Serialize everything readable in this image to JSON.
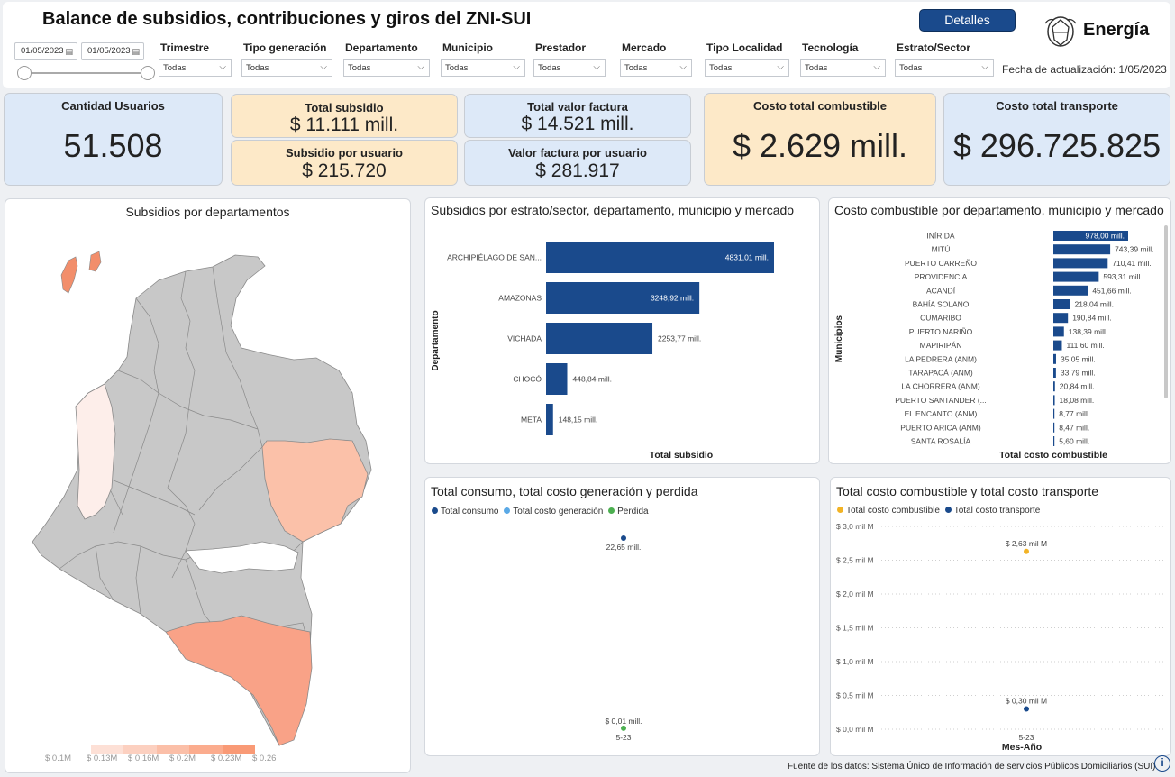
{
  "header": {
    "title": "Balance de subsidios, contribuciones y giros del ZNI-SUI",
    "details_button": "Detalles",
    "logo_text": "Energía",
    "update_text": "Fecha de actualización: 1/05/2023",
    "date_from": "01/05/2023",
    "date_to": "01/05/2023",
    "filters": [
      {
        "label": "Trimestre",
        "value": "Todas"
      },
      {
        "label": "Tipo generación",
        "value": "Todas"
      },
      {
        "label": "Departamento",
        "value": "Todas"
      },
      {
        "label": "Municipio",
        "value": "Todas"
      },
      {
        "label": "Prestador",
        "value": "Todas"
      },
      {
        "label": "Mercado",
        "value": "Todas"
      },
      {
        "label": "Tipo Localidad",
        "value": "Todas"
      },
      {
        "label": "Tecnología",
        "value": "Todas"
      },
      {
        "label": "Estrato/Sector",
        "value": "Todas"
      }
    ]
  },
  "kpis": {
    "usuarios": {
      "label": "Cantidad Usuarios",
      "value": "51.508"
    },
    "total_subsidio": {
      "label": "Total subsidio",
      "value": "$ 11.111 mill."
    },
    "subsidio_usuario": {
      "label": "Subsidio por usuario",
      "value": "$ 215.720"
    },
    "total_factura": {
      "label": "Total valor factura",
      "value": "$ 14.521 mill."
    },
    "factura_usuario": {
      "label": "Valor factura por usuario",
      "value": "$ 281.917"
    },
    "costo_combustible": {
      "label": "Costo total combustible",
      "value": "$ 2.629 mill."
    },
    "costo_transporte": {
      "label": "Costo total transporte",
      "value": "$ 296.725.825"
    }
  },
  "map": {
    "title": "Subsidios por departamentos",
    "legend": [
      "$ 0.1M",
      "$ 0.13M",
      "$ 0.16M",
      "$ 0.2M",
      "$ 0.23M",
      "$ 0.26"
    ],
    "legend_colors": [
      "#fde0d6",
      "#fcd0c0",
      "#fbbfa8",
      "#fbac8e",
      "#f99a76"
    ]
  },
  "chart_data": [
    {
      "type": "bar",
      "orientation": "horizontal",
      "title": "Subsidios por estrato/sector, departamento, municipio y mercado",
      "ylabel": "Departamento",
      "xlabel": "Total subsidio",
      "color": "#1a4a8c",
      "categories": [
        "ARCHIPIÉLAGO DE SAN...",
        "AMAZONAS",
        "VICHADA",
        "CHOCÓ",
        "META"
      ],
      "values": [
        4831.01,
        3248.92,
        2253.77,
        448.84,
        148.15
      ],
      "labels": [
        "4831,01 mill.",
        "3248,92 mill.",
        "2253,77 mill.",
        "448,84 mill.",
        "148,15 mill."
      ]
    },
    {
      "type": "bar",
      "orientation": "horizontal",
      "title": "Costo combustible por departamento, municipio y mercado",
      "ylabel": "Municipios",
      "xlabel": "Total costo combustible",
      "color": "#1a4a8c",
      "categories": [
        "INÍRIDA",
        "MITÚ",
        "PUERTO CARREÑO",
        "PROVIDENCIA",
        "ACANDÍ",
        "BAHÍA SOLANO",
        "CUMARIBO",
        "PUERTO NARIÑO",
        "MAPIRIPÁN",
        "LA PEDRERA (ANM)",
        "TARAPACÁ (ANM)",
        "LA CHORRERA (ANM)",
        "PUERTO SANTANDER (...",
        "EL ENCANTO (ANM)",
        "PUERTO ARICA (ANM)",
        "SANTA ROSALÍA"
      ],
      "values": [
        978.0,
        743.39,
        710.41,
        593.31,
        451.66,
        218.04,
        190.84,
        138.39,
        111.6,
        35.05,
        33.79,
        20.84,
        18.08,
        8.77,
        8.47,
        5.6
      ],
      "labels": [
        "978,00 mill.",
        "743,39 mill.",
        "710,41 mill.",
        "593,31 mill.",
        "451,66 mill.",
        "218,04 mill.",
        "190,84 mill.",
        "138,39 mill.",
        "111,60 mill.",
        "35,05 mill.",
        "33,79 mill.",
        "20,84 mill.",
        "18,08 mill.",
        "8,77 mill.",
        "8,47 mill.",
        "5,60 mill."
      ]
    },
    {
      "type": "scatter",
      "title": "Total consumo, total costo generación y perdida",
      "categories": [
        "5-23"
      ],
      "series": [
        {
          "name": "Total consumo",
          "color": "#1a4a8c",
          "values": [
            22.65
          ],
          "label": "22,65 mill."
        },
        {
          "name": "Total costo generación",
          "color": "#5aa9e6",
          "values": [
            null
          ]
        },
        {
          "name": "Perdida",
          "color": "#4caf50",
          "values": [
            0.01
          ],
          "label": "$ 0,01 mill."
        }
      ]
    },
    {
      "type": "scatter",
      "title": "Total costo combustible y total costo transporte",
      "xlabel": "Mes-Año",
      "categories": [
        "5-23"
      ],
      "yticks": [
        "$ 3,0 mil M",
        "$ 2,5 mil M",
        "$ 2,0 mil M",
        "$ 1,5 mil M",
        "$ 1,0 mil M",
        "$ 0,5 mil M",
        "$ 0,0 mil M"
      ],
      "ylim": [
        0,
        3.0
      ],
      "series": [
        {
          "name": "Total costo combustible",
          "color": "#f2b325",
          "values": [
            2.63
          ],
          "label": "$ 2,63 mil M"
        },
        {
          "name": "Total costo transporte",
          "color": "#1a4a8c",
          "values": [
            0.3
          ],
          "label": "$ 0,30 mil M"
        }
      ]
    }
  ],
  "footer": {
    "source": "Fuente de los datos: Sistema Único de Información de servicios Públicos Domiciliarios (SUI)",
    "info_icon": "info-icon"
  }
}
